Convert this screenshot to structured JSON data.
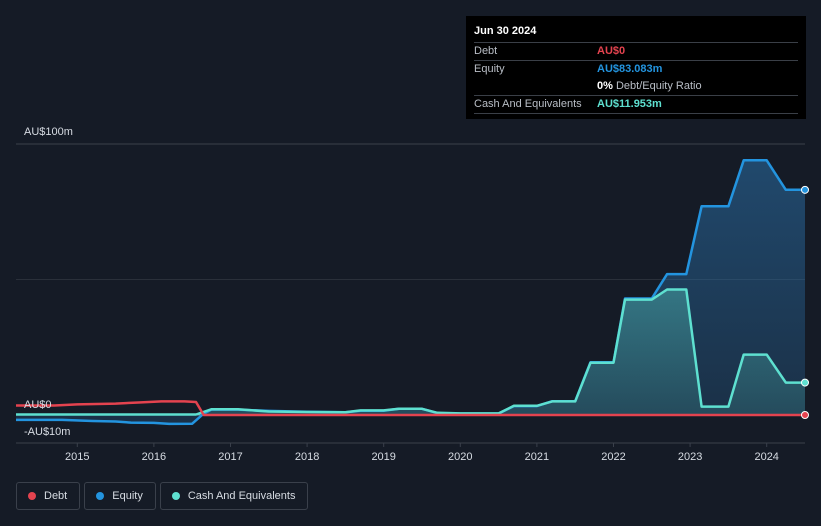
{
  "tooltip": {
    "date": "Jun 30 2024",
    "debt_label": "Debt",
    "debt_value": "AU$0",
    "equity_label": "Equity",
    "equity_value": "AU$83.083m",
    "ratio_value": "0%",
    "ratio_label": "Debt/Equity Ratio",
    "cash_label": "Cash And Equivalents",
    "cash_value": "AU$11.953m"
  },
  "legend": {
    "debt": "Debt",
    "equity": "Equity",
    "cash": "Cash And Equivalents"
  },
  "colors": {
    "debt": "#e4434f",
    "equity": "#2394df",
    "cash": "#5ee0d0",
    "background": "#151b26"
  },
  "chart_data": {
    "type": "line",
    "ytick_labels": [
      "AU$100m",
      "AU$0",
      "-AU$10m"
    ],
    "ylim": [
      -10,
      100
    ],
    "xlim": [
      2014.2,
      2024.5
    ],
    "xticks": [
      2015,
      2016,
      2017,
      2018,
      2019,
      2020,
      2021,
      2022,
      2023,
      2024
    ],
    "legend_position": "bottom-left",
    "series": [
      {
        "name": "Debt",
        "key": "debt",
        "points": [
          [
            2014.2,
            3.5
          ],
          [
            2014.7,
            3.5
          ],
          [
            2015.0,
            3.9
          ],
          [
            2015.5,
            4.2
          ],
          [
            2015.8,
            4.6
          ],
          [
            2016.1,
            5.0
          ],
          [
            2016.4,
            5.0
          ],
          [
            2016.55,
            4.8
          ],
          [
            2016.65,
            0
          ],
          [
            2024.5,
            0
          ]
        ]
      },
      {
        "name": "Equity",
        "key": "equity",
        "points": [
          [
            2014.2,
            -1.8
          ],
          [
            2014.8,
            -1.8
          ],
          [
            2015.2,
            -2.2
          ],
          [
            2015.5,
            -2.4
          ],
          [
            2015.7,
            -2.8
          ],
          [
            2016.0,
            -2.9
          ],
          [
            2016.2,
            -3.3
          ],
          [
            2016.5,
            -3.2
          ],
          [
            2016.65,
            0.5
          ],
          [
            2016.75,
            2.0
          ],
          [
            2017.1,
            2.0
          ],
          [
            2017.5,
            1.5
          ],
          [
            2018.0,
            1.2
          ],
          [
            2018.5,
            1.0
          ],
          [
            2018.7,
            1.6
          ],
          [
            2019.0,
            1.6
          ],
          [
            2019.2,
            2.3
          ],
          [
            2019.5,
            2.3
          ],
          [
            2019.7,
            0.7
          ],
          [
            2020.0,
            0.5
          ],
          [
            2020.5,
            0.5
          ],
          [
            2020.7,
            3.3
          ],
          [
            2021.0,
            3.3
          ],
          [
            2021.2,
            5.1
          ],
          [
            2021.5,
            5.1
          ],
          [
            2021.7,
            19.5
          ],
          [
            2022.0,
            19.5
          ],
          [
            2022.15,
            43
          ],
          [
            2022.5,
            43
          ],
          [
            2022.7,
            52
          ],
          [
            2022.95,
            52
          ],
          [
            2023.15,
            77
          ],
          [
            2023.5,
            77
          ],
          [
            2023.7,
            94
          ],
          [
            2024.0,
            94
          ],
          [
            2024.25,
            83.083
          ],
          [
            2024.5,
            83.083
          ]
        ]
      },
      {
        "name": "Cash And Equivalents",
        "key": "cash",
        "points": [
          [
            2014.2,
            0.2
          ],
          [
            2016.55,
            0.2
          ],
          [
            2016.75,
            2.1
          ],
          [
            2017.1,
            2.1
          ],
          [
            2017.5,
            1.3
          ],
          [
            2018.0,
            1.1
          ],
          [
            2018.5,
            1.0
          ],
          [
            2018.7,
            1.7
          ],
          [
            2019.0,
            1.7
          ],
          [
            2019.2,
            2.3
          ],
          [
            2019.5,
            2.3
          ],
          [
            2019.7,
            0.8
          ],
          [
            2020.0,
            0.6
          ],
          [
            2020.5,
            0.6
          ],
          [
            2020.7,
            3.4
          ],
          [
            2021.0,
            3.4
          ],
          [
            2021.2,
            5.0
          ],
          [
            2021.5,
            5.0
          ],
          [
            2021.7,
            19.3
          ],
          [
            2022.0,
            19.3
          ],
          [
            2022.15,
            42.6
          ],
          [
            2022.5,
            42.6
          ],
          [
            2022.7,
            46.3
          ],
          [
            2022.95,
            46.3
          ],
          [
            2023.15,
            3.1
          ],
          [
            2023.5,
            3.1
          ],
          [
            2023.7,
            22.3
          ],
          [
            2024.0,
            22.3
          ],
          [
            2024.25,
            11.953
          ],
          [
            2024.5,
            11.953
          ]
        ]
      }
    ]
  }
}
